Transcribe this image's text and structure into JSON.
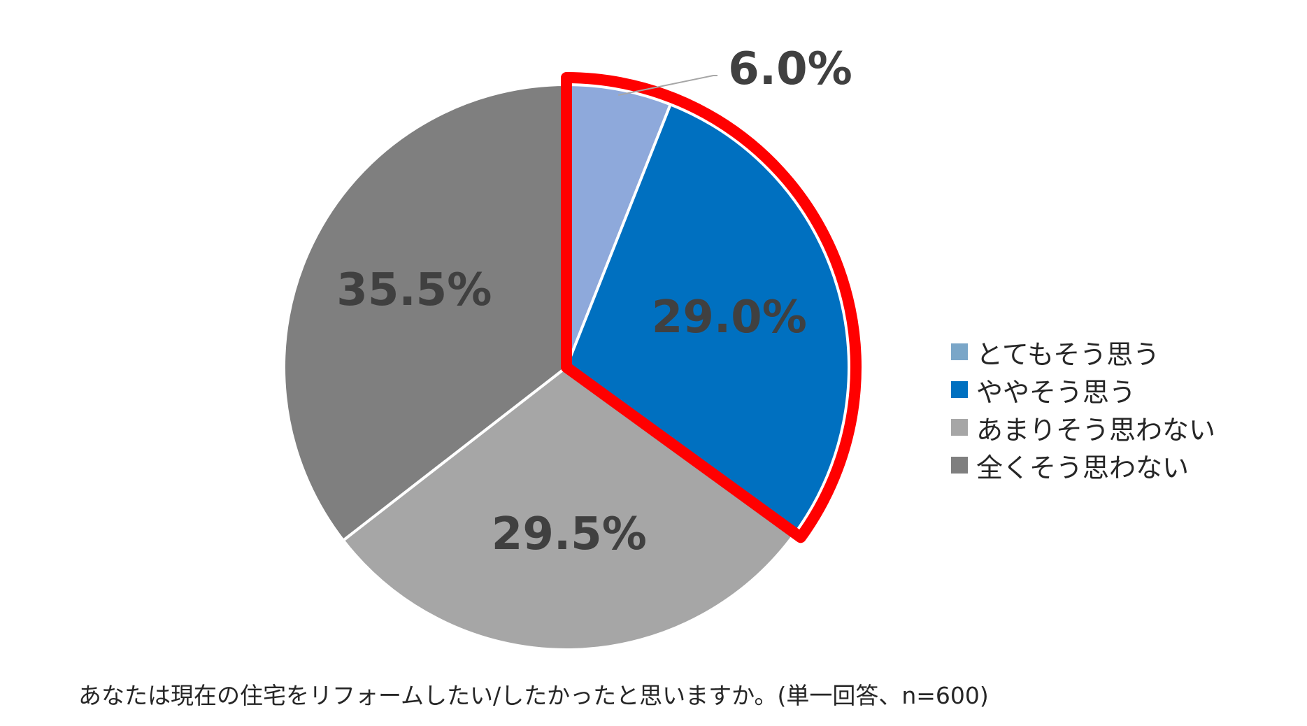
{
  "chart_data": {
    "type": "pie",
    "start_angle_deg": 0,
    "direction": "clockwise",
    "slices": [
      {
        "label": "とてもそう思う",
        "value": 6.0,
        "data_label": "6.0%",
        "color": "#8EA9DB",
        "label_placement": "outside-leader"
      },
      {
        "label": "ややそう思う",
        "value": 29.0,
        "data_label": "29.0%",
        "color": "#0070C0",
        "label_placement": "inside"
      },
      {
        "label": "あまりそう思わない",
        "value": 29.5,
        "data_label": "29.5%",
        "color": "#A6A6A6",
        "label_placement": "inside"
      },
      {
        "label": "全くそう思わない",
        "value": 35.5,
        "data_label": "35.5%",
        "color": "#7F7F7F",
        "label_placement": "inside"
      }
    ],
    "highlight": {
      "slices": [
        0,
        1
      ],
      "outline_color": "#FF0000"
    },
    "legend": {
      "position": "right",
      "items": [
        {
          "label": "とてもそう思う",
          "color": "#7AA6C8"
        },
        {
          "label": "ややそう思う",
          "color": "#0070C0"
        },
        {
          "label": "あまりそう思わない",
          "color": "#A6A6A6"
        },
        {
          "label": "全くそう思わない",
          "color": "#7F7F7F"
        }
      ]
    },
    "caption": "あなたは現在の住宅をリフォームしたい/したかったと思いますか。(単一回答、n=600)"
  }
}
